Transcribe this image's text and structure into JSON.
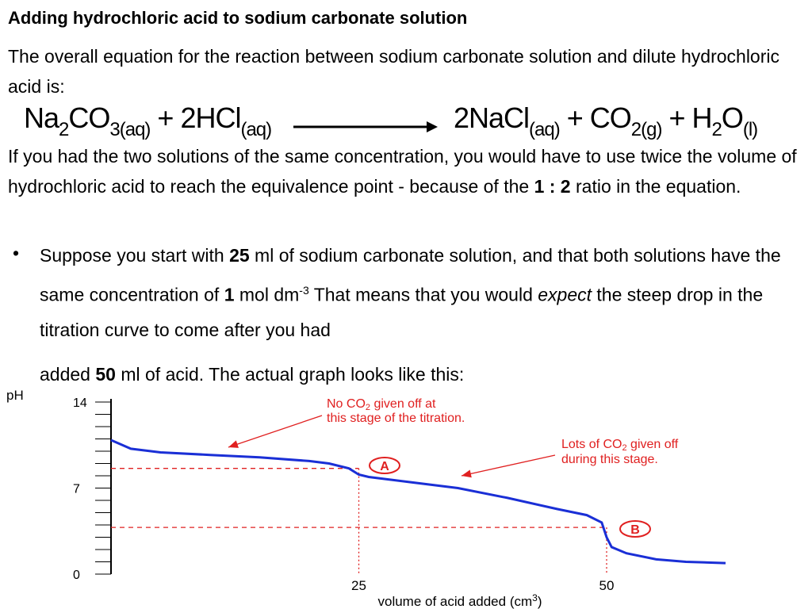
{
  "title": "Adding hydrochloric acid to sodium carbonate solution",
  "intro": "The overall equation for the reaction between sodium carbonate solution and dilute hydrochloric acid is:",
  "equation": {
    "lhs": {
      "a": "Na",
      "b": "2",
      "c": "CO",
      "d": "3(aq)",
      "e": " + 2HCl",
      "f": "(aq)"
    },
    "rhs": {
      "a": "2NaCl",
      "b": "(aq)",
      "c": " + CO",
      "d": "2(g)",
      "e": " + H",
      "f": "2",
      "g": "O",
      "h": "(l)"
    }
  },
  "para2": {
    "pre": "If you had the two solutions of the same concentration, you would have to use twice the volume of hydrochloric acid to reach the equivalence point - because of the ",
    "bold": "1 : 2",
    "post": " ratio in the equation."
  },
  "bullet": {
    "dot": "•",
    "t1": "Suppose you start with ",
    "b1": "25",
    "t2": " ml of sodium carbonate solution, and that both solutions have the same concentration of ",
    "b2": "1",
    "t3": " mol dm",
    "sup": "-3",
    "t4": " That means that you would ",
    "em": "expect",
    "t5": " the steep drop in the titration curve to come after you had",
    "t6": "added ",
    "b3": "50",
    "t7": " ml of acid. The actual graph looks like this:"
  },
  "graph": {
    "ph_label": "pH",
    "y_ticks": [
      "14",
      "7",
      "0"
    ],
    "x_ticks": [
      "25",
      "50"
    ],
    "x_label_pre": "volume of acid added (cm",
    "x_label_sup": "3",
    "x_label_post": ")",
    "annotation1_line1": "No CO",
    "annotation1_sub": "2",
    "annotation1_rest": " given off at",
    "annotation1_line2": "this stage of the titration.",
    "annotation2_line1": "Lots of CO",
    "annotation2_sub": "2",
    "annotation2_rest": " given off",
    "annotation2_line2": "during this stage.",
    "marker_a": "A",
    "marker_b": "B",
    "colors": {
      "curve": "#1a2fd6",
      "annotation": "#e02020",
      "axis": "#000000"
    }
  },
  "chart_data": {
    "type": "line",
    "xlabel": "volume of acid added (cm3)",
    "ylabel": "pH",
    "ylim": [
      0,
      14
    ],
    "xlim": [
      0,
      64
    ],
    "x_tick_labels": [
      25,
      50
    ],
    "y_tick_labels": [
      0,
      7,
      14
    ],
    "series": [
      {
        "x": [
          0,
          2,
          5,
          10,
          15,
          20,
          22,
          24,
          25,
          26,
          30,
          35,
          40,
          45,
          48,
          49.5,
          50,
          50.5,
          52,
          55,
          58,
          62
        ],
        "y": [
          10.9,
          10.2,
          9.9,
          9.7,
          9.5,
          9.2,
          9.0,
          8.6,
          8.1,
          7.9,
          7.5,
          7.0,
          6.2,
          5.3,
          4.8,
          4.2,
          3.0,
          2.2,
          1.7,
          1.2,
          1.0,
          0.9
        ]
      }
    ],
    "reference_lines": [
      {
        "type": "horizontal",
        "y": 8.6
      },
      {
        "type": "horizontal",
        "y": 3.8
      },
      {
        "type": "vertical",
        "x": 25
      },
      {
        "type": "vertical",
        "x": 50
      }
    ]
  }
}
